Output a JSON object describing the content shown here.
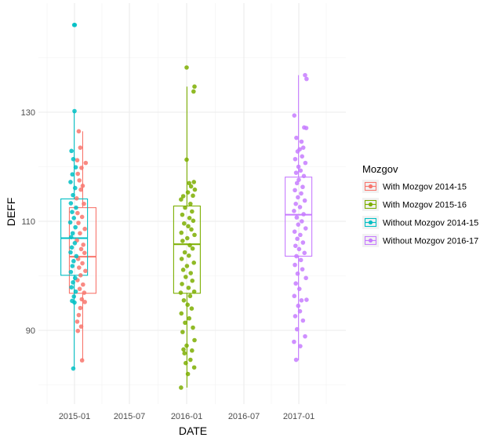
{
  "chart_data": {
    "type": "box",
    "xlabel": "DATE",
    "ylabel": "DEFF",
    "x_ticks": [
      "2015-01",
      "2015-07",
      "2016-01",
      "2016-07",
      "2017-01"
    ],
    "y_ticks": [
      90,
      110,
      130
    ],
    "ylim": [
      77,
      152
    ],
    "grid": true,
    "legend": {
      "title": "Mozgov",
      "position": "right"
    },
    "series": [
      {
        "name": "With Mozgov 2014-15",
        "color": "#F8766D",
        "date": "2015-01-28",
        "box": {
          "min": 84.5,
          "q1": 96.8,
          "median": 103.5,
          "q3": 112.5,
          "max": 126.5
        },
        "points": [
          {
            "d": "2015-01-15",
            "v": 126.5
          },
          {
            "d": "2015-01-20",
            "v": 123.5
          },
          {
            "d": "2015-02-07",
            "v": 120.7
          },
          {
            "d": "2015-01-10",
            "v": 121.2
          },
          {
            "d": "2015-01-24",
            "v": 119.8
          },
          {
            "d": "2015-01-12",
            "v": 118.7
          },
          {
            "d": "2015-01-17",
            "v": 117.5
          },
          {
            "d": "2015-01-28",
            "v": 116.5
          },
          {
            "d": "2015-01-22",
            "v": 115.8
          },
          {
            "d": "2015-01-08",
            "v": 114.2
          },
          {
            "d": "2015-02-01",
            "v": 113.2
          },
          {
            "d": "2015-01-11",
            "v": 111.5
          },
          {
            "d": "2015-01-26",
            "v": 110.8
          },
          {
            "d": "2015-01-14",
            "v": 109.7
          },
          {
            "d": "2015-02-04",
            "v": 108.6
          },
          {
            "d": "2015-01-19",
            "v": 107.8
          },
          {
            "d": "2015-01-09",
            "v": 106.5
          },
          {
            "d": "2015-01-30",
            "v": 105.7
          },
          {
            "d": "2015-01-23",
            "v": 104.9
          },
          {
            "d": "2015-02-03",
            "v": 104.2
          },
          {
            "d": "2015-01-13",
            "v": 103.1
          },
          {
            "d": "2015-01-27",
            "v": 102.3
          },
          {
            "d": "2015-01-16",
            "v": 101.5
          },
          {
            "d": "2015-02-06",
            "v": 100.9
          },
          {
            "d": "2015-01-21",
            "v": 100.1
          },
          {
            "d": "2015-01-11",
            "v": 99.2
          },
          {
            "d": "2015-01-29",
            "v": 98.4
          },
          {
            "d": "2015-01-18",
            "v": 97.6
          },
          {
            "d": "2015-02-02",
            "v": 96.9
          },
          {
            "d": "2015-01-25",
            "v": 95.7
          },
          {
            "d": "2015-02-04",
            "v": 95.2
          },
          {
            "d": "2015-01-20",
            "v": 94.1
          },
          {
            "d": "2015-01-15",
            "v": 92.8
          },
          {
            "d": "2015-01-10",
            "v": 91.6
          },
          {
            "d": "2015-01-23",
            "v": 90.7
          },
          {
            "d": "2015-01-12",
            "v": 89.9
          },
          {
            "d": "2015-01-26",
            "v": 84.5
          }
        ]
      },
      {
        "name": "With Mozgov 2015-16",
        "color": "#7CAE00",
        "date": "2016-01-02",
        "box": {
          "min": 79.5,
          "q1": 96.8,
          "median": 105.8,
          "q3": 112.8,
          "max": 134.7
        },
        "points": [
          {
            "d": "2016-01-01",
            "v": 138.2
          },
          {
            "d": "2016-01-26",
            "v": 134.7
          },
          {
            "d": "2016-01-23",
            "v": 133.8
          },
          {
            "d": "2016-01-01",
            "v": 121.3
          },
          {
            "d": "2016-01-24",
            "v": 117.2
          },
          {
            "d": "2016-01-09",
            "v": 117.0
          },
          {
            "d": "2016-01-15",
            "v": 116.4
          },
          {
            "d": "2016-01-27",
            "v": 115.8
          },
          {
            "d": "2016-01-05",
            "v": 115.3
          },
          {
            "d": "2016-01-21",
            "v": 114.7
          },
          {
            "d": "2015-12-21",
            "v": 114.6
          },
          {
            "d": "2015-12-14",
            "v": 114.0
          },
          {
            "d": "2016-01-13",
            "v": 113.2
          },
          {
            "d": "2015-12-27",
            "v": 112.5
          },
          {
            "d": "2016-01-18",
            "v": 111.8
          },
          {
            "d": "2015-12-18",
            "v": 111.2
          },
          {
            "d": "2016-01-10",
            "v": 110.6
          },
          {
            "d": "2016-01-22",
            "v": 110.1
          },
          {
            "d": "2015-12-24",
            "v": 109.6
          },
          {
            "d": "2016-01-06",
            "v": 109.1
          },
          {
            "d": "2016-01-16",
            "v": 108.5
          },
          {
            "d": "2015-12-15",
            "v": 107.9
          },
          {
            "d": "2016-01-26",
            "v": 107.5
          },
          {
            "d": "2016-01-03",
            "v": 106.9
          },
          {
            "d": "2015-12-19",
            "v": 106.4
          },
          {
            "d": "2016-01-11",
            "v": 105.6
          },
          {
            "d": "2016-01-20",
            "v": 105.0
          },
          {
            "d": "2015-12-26",
            "v": 104.3
          },
          {
            "d": "2016-01-08",
            "v": 103.7
          },
          {
            "d": "2015-12-16",
            "v": 103.1
          },
          {
            "d": "2016-01-24",
            "v": 102.4
          },
          {
            "d": "2016-01-02",
            "v": 101.8
          },
          {
            "d": "2015-12-21",
            "v": 101.1
          },
          {
            "d": "2016-01-14",
            "v": 100.5
          },
          {
            "d": "2015-12-29",
            "v": 99.8
          },
          {
            "d": "2016-01-19",
            "v": 99.1
          },
          {
            "d": "2015-12-17",
            "v": 98.5
          },
          {
            "d": "2016-01-07",
            "v": 97.8
          },
          {
            "d": "2016-01-25",
            "v": 97.1
          },
          {
            "d": "2015-12-13",
            "v": 96.9
          },
          {
            "d": "2016-01-12",
            "v": 96.3
          },
          {
            "d": "2015-12-23",
            "v": 95.5
          },
          {
            "d": "2016-01-04",
            "v": 94.7
          },
          {
            "d": "2016-01-17",
            "v": 94.0
          },
          {
            "d": "2015-12-15",
            "v": 93.1
          },
          {
            "d": "2016-01-09",
            "v": 92.2
          },
          {
            "d": "2015-12-27",
            "v": 91.4
          },
          {
            "d": "2016-01-21",
            "v": 90.5
          },
          {
            "d": "2015-12-19",
            "v": 89.7
          },
          {
            "d": "2016-01-26",
            "v": 88.2
          },
          {
            "d": "2016-01-01",
            "v": 87.2
          },
          {
            "d": "2015-12-22",
            "v": 86.5
          },
          {
            "d": "2016-01-18",
            "v": 86.3
          },
          {
            "d": "2015-12-25",
            "v": 85.8
          },
          {
            "d": "2016-01-13",
            "v": 84.6
          },
          {
            "d": "2015-12-29",
            "v": 84.0
          },
          {
            "d": "2016-01-25",
            "v": 83.2
          },
          {
            "d": "2016-01-05",
            "v": 82.0
          },
          {
            "d": "2015-12-14",
            "v": 79.5
          }
        ]
      },
      {
        "name": "Without Mozgov 2014-15",
        "color": "#00BFC4",
        "date": "2014-12-31",
        "box": {
          "min": 83.0,
          "q1": 100.1,
          "median": 106.9,
          "q3": 114.1,
          "max": 130.2
        },
        "points": [
          {
            "d": "2014-12-31",
            "v": 146.0
          },
          {
            "d": "2015-01-02",
            "v": 146.0
          },
          {
            "d": "2015-01-01",
            "v": 130.2
          },
          {
            "d": "2014-12-22",
            "v": 122.9
          },
          {
            "d": "2014-12-28",
            "v": 121.4
          },
          {
            "d": "2015-01-05",
            "v": 119.9
          },
          {
            "d": "2014-12-25",
            "v": 118.6
          },
          {
            "d": "2014-12-19",
            "v": 117.2
          },
          {
            "d": "2015-01-03",
            "v": 116.1
          },
          {
            "d": "2014-12-27",
            "v": 114.8
          },
          {
            "d": "2014-12-20",
            "v": 113.3
          },
          {
            "d": "2015-01-06",
            "v": 112.5
          },
          {
            "d": "2014-12-24",
            "v": 111.7
          },
          {
            "d": "2014-12-30",
            "v": 110.6
          },
          {
            "d": "2014-12-18",
            "v": 109.8
          },
          {
            "d": "2015-01-04",
            "v": 108.9
          },
          {
            "d": "2014-12-26",
            "v": 107.8
          },
          {
            "d": "2014-12-21",
            "v": 107.1
          },
          {
            "d": "2015-01-02",
            "v": 106.0
          },
          {
            "d": "2014-12-23",
            "v": 105.2
          },
          {
            "d": "2014-12-19",
            "v": 104.3
          },
          {
            "d": "2015-01-07",
            "v": 103.6
          },
          {
            "d": "2014-12-29",
            "v": 102.7
          },
          {
            "d": "2014-12-25",
            "v": 101.8
          },
          {
            "d": "2014-12-20",
            "v": 100.7
          },
          {
            "d": "2015-01-03",
            "v": 99.6
          },
          {
            "d": "2014-12-27",
            "v": 98.8
          },
          {
            "d": "2014-12-22",
            "v": 97.9
          },
          {
            "d": "2015-01-05",
            "v": 97.1
          },
          {
            "d": "2014-12-30",
            "v": 96.2
          },
          {
            "d": "2014-12-24",
            "v": 95.4
          },
          {
            "d": "2015-01-01",
            "v": 95.1
          },
          {
            "d": "2014-12-28",
            "v": 83.0
          }
        ]
      },
      {
        "name": "Without Mozgov 2016-17",
        "color": "#C77CFF",
        "date": "2016-12-31",
        "box": {
          "min": 84.5,
          "q1": 103.6,
          "median": 111.2,
          "q3": 118.1,
          "max": 136.8
        },
        "points": [
          {
            "d": "2017-01-22",
            "v": 136.8
          },
          {
            "d": "2017-01-27",
            "v": 136.1
          },
          {
            "d": "2016-12-17",
            "v": 129.4
          },
          {
            "d": "2017-01-19",
            "v": 127.2
          },
          {
            "d": "2017-01-26",
            "v": 127.1
          },
          {
            "d": "2016-12-24",
            "v": 125.3
          },
          {
            "d": "2017-01-10",
            "v": 124.6
          },
          {
            "d": "2017-01-16",
            "v": 123.5
          },
          {
            "d": "2017-01-04",
            "v": 123.2
          },
          {
            "d": "2016-12-28",
            "v": 122.8
          },
          {
            "d": "2017-01-12",
            "v": 121.9
          },
          {
            "d": "2016-12-20",
            "v": 121.4
          },
          {
            "d": "2017-01-23",
            "v": 120.7
          },
          {
            "d": "2016-12-31",
            "v": 120.0
          },
          {
            "d": "2017-01-07",
            "v": 119.3
          },
          {
            "d": "2016-12-23",
            "v": 118.9
          },
          {
            "d": "2017-01-18",
            "v": 118.3
          },
          {
            "d": "2017-01-01",
            "v": 117.6
          },
          {
            "d": "2016-12-26",
            "v": 117.0
          },
          {
            "d": "2017-01-14",
            "v": 116.3
          },
          {
            "d": "2016-12-19",
            "v": 115.7
          },
          {
            "d": "2017-01-09",
            "v": 115.1
          },
          {
            "d": "2016-12-29",
            "v": 114.4
          },
          {
            "d": "2017-01-21",
            "v": 113.8
          },
          {
            "d": "2016-12-22",
            "v": 113.2
          },
          {
            "d": "2017-01-05",
            "v": 112.6
          },
          {
            "d": "2016-12-16",
            "v": 111.9
          },
          {
            "d": "2017-01-17",
            "v": 111.3
          },
          {
            "d": "2016-12-25",
            "v": 110.7
          },
          {
            "d": "2017-01-11",
            "v": 110.0
          },
          {
            "d": "2016-12-30",
            "v": 109.4
          },
          {
            "d": "2017-01-24",
            "v": 108.7
          },
          {
            "d": "2016-12-18",
            "v": 108.1
          },
          {
            "d": "2017-01-06",
            "v": 107.5
          },
          {
            "d": "2016-12-27",
            "v": 106.8
          },
          {
            "d": "2017-01-15",
            "v": 106.1
          },
          {
            "d": "2016-12-21",
            "v": 105.5
          },
          {
            "d": "2017-01-02",
            "v": 104.9
          },
          {
            "d": "2017-01-20",
            "v": 104.2
          },
          {
            "d": "2016-12-24",
            "v": 103.6
          },
          {
            "d": "2017-01-08",
            "v": 102.9
          },
          {
            "d": "2016-12-19",
            "v": 102.0
          },
          {
            "d": "2017-01-13",
            "v": 101.2
          },
          {
            "d": "2016-12-28",
            "v": 100.4
          },
          {
            "d": "2017-01-25",
            "v": 99.6
          },
          {
            "d": "2016-12-22",
            "v": 98.6
          },
          {
            "d": "2017-01-03",
            "v": 97.6
          },
          {
            "d": "2016-12-17",
            "v": 96.3
          },
          {
            "d": "2017-01-10",
            "v": 95.5
          },
          {
            "d": "2017-01-27",
            "v": 95.6
          },
          {
            "d": "2016-12-30",
            "v": 94.5
          },
          {
            "d": "2017-01-05",
            "v": 93.5
          },
          {
            "d": "2016-12-20",
            "v": 92.6
          },
          {
            "d": "2017-01-15",
            "v": 91.8
          },
          {
            "d": "2016-12-26",
            "v": 90.2
          },
          {
            "d": "2017-01-22",
            "v": 88.9
          },
          {
            "d": "2016-12-16",
            "v": 87.9
          },
          {
            "d": "2017-01-06",
            "v": 87.1
          },
          {
            "d": "2016-12-23",
            "v": 84.6
          }
        ]
      }
    ]
  }
}
